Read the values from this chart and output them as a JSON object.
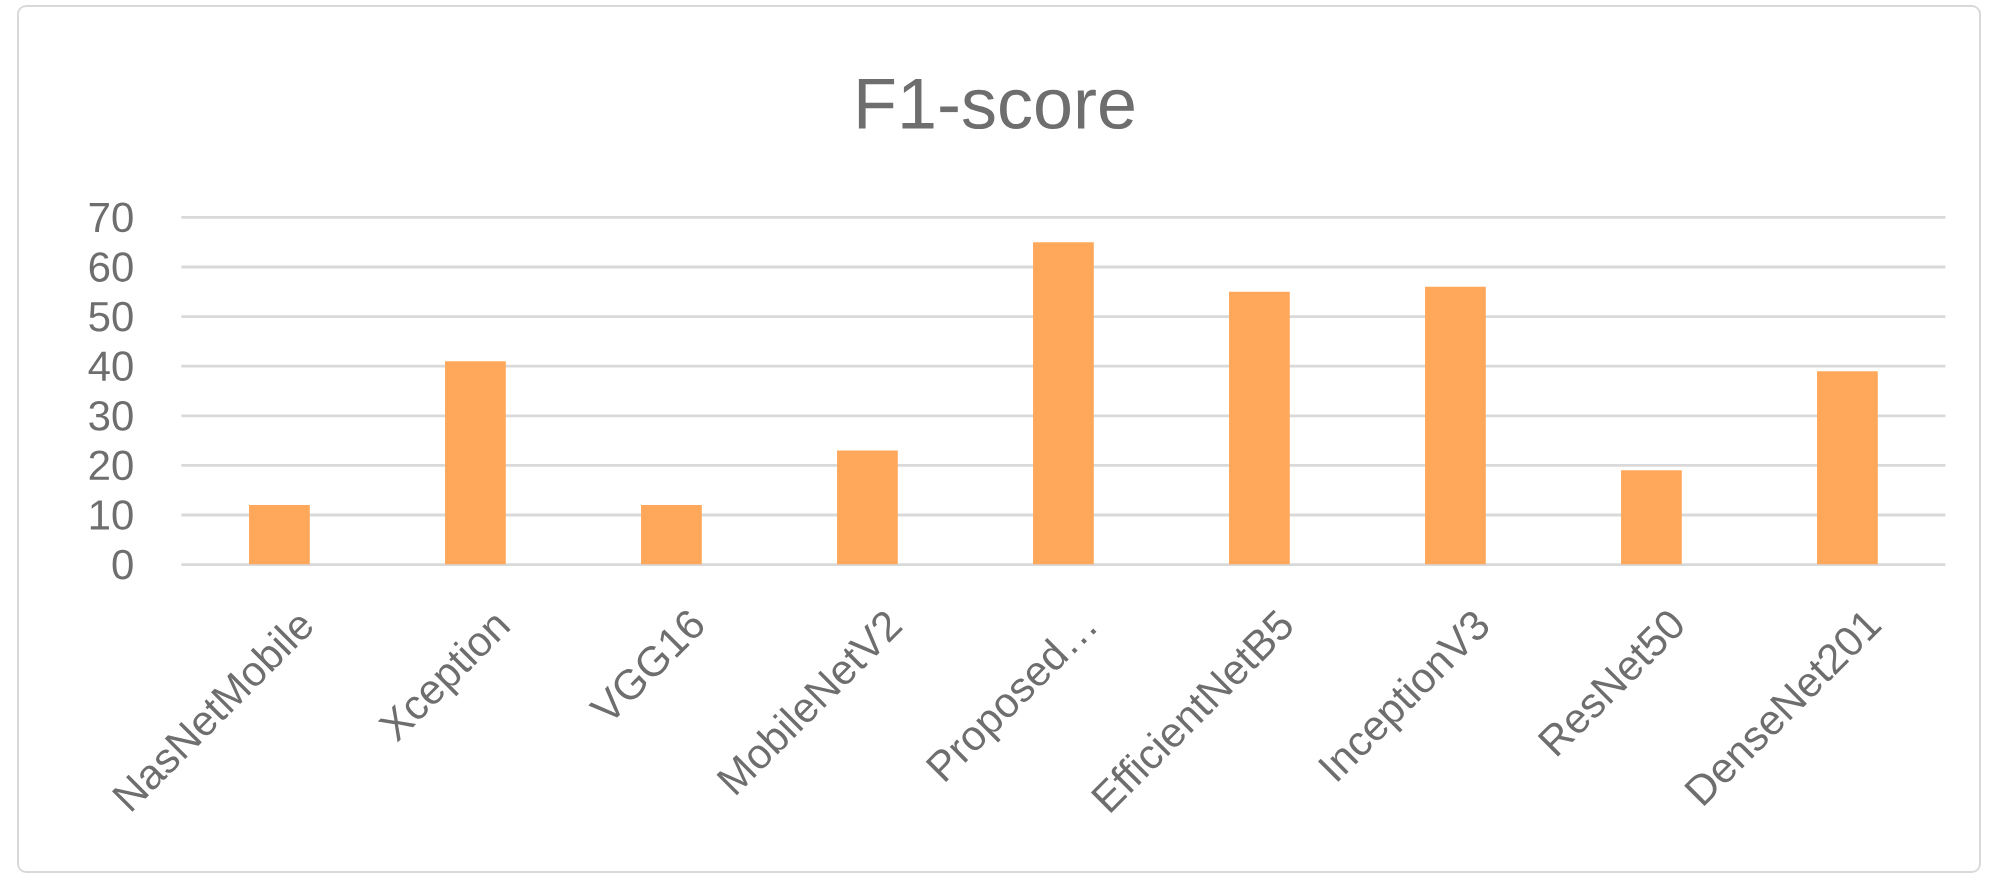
{
  "chart_data": {
    "type": "bar",
    "title": "F1-score",
    "categories": [
      "NasNetMobile",
      "Xception",
      "VGG16",
      "MobileNetV2",
      "Proposed…",
      "EfficientNetB5",
      "InceptionV3",
      "ResNet50",
      "DenseNet201"
    ],
    "values": [
      12,
      41,
      12,
      23,
      65,
      55,
      56,
      19,
      39
    ],
    "color": "#ffa85b",
    "ylim": [
      0,
      70
    ],
    "yticks": [
      0,
      10,
      20,
      30,
      40,
      50,
      60,
      70
    ],
    "grid": "y"
  }
}
